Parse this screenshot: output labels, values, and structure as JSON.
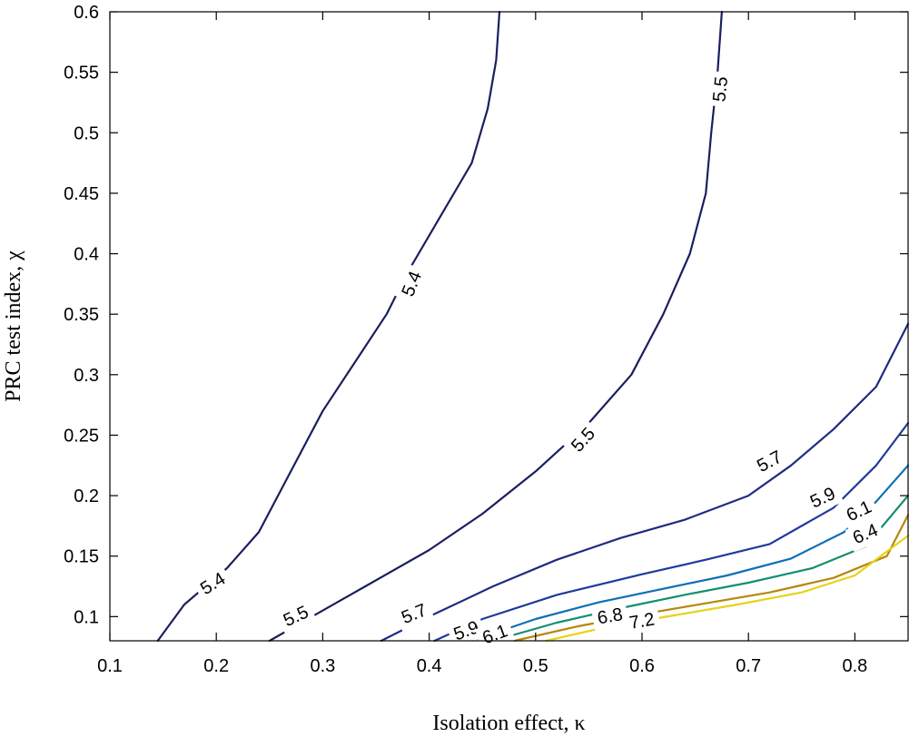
{
  "chart_data": {
    "type": "contour",
    "title": "",
    "xlabel": "Isolation effect, κ",
    "ylabel": "PRC test index, χ",
    "xlim": [
      0.1,
      0.85
    ],
    "ylim": [
      0.08,
      0.6
    ],
    "xticks": [
      0.1,
      0.2,
      0.3,
      0.4,
      0.5,
      0.6,
      0.7,
      0.8
    ],
    "xtick_labels": [
      "0.1",
      "0.2",
      "0.3",
      "0.4",
      "0.5",
      "0.6",
      "0.7",
      "0.8"
    ],
    "yticks": [
      0.1,
      0.15,
      0.2,
      0.25,
      0.3,
      0.35,
      0.4,
      0.45,
      0.5,
      0.55,
      0.6
    ],
    "ytick_labels": [
      "0.1",
      "0.15",
      "0.2",
      "0.25",
      "0.3",
      "0.35",
      "0.4",
      "0.45",
      "0.5",
      "0.55",
      "0.6"
    ],
    "grid": false,
    "series": [
      {
        "name": "5.4",
        "color": "#1b1f5e",
        "points": [
          [
            0.145,
            0.08
          ],
          [
            0.17,
            0.11
          ],
          [
            0.21,
            0.14
          ],
          [
            0.24,
            0.17
          ],
          [
            0.27,
            0.22
          ],
          [
            0.3,
            0.27
          ],
          [
            0.33,
            0.31
          ],
          [
            0.36,
            0.35
          ],
          [
            0.38,
            0.385
          ],
          [
            0.41,
            0.43
          ],
          [
            0.44,
            0.475
          ],
          [
            0.455,
            0.52
          ],
          [
            0.463,
            0.56
          ],
          [
            0.466,
            0.6
          ]
        ],
        "labels": [
          {
            "text": "5.4",
            "x": 0.197,
            "y": 0.127,
            "rot": -32
          },
          {
            "text": "5.4",
            "x": 0.384,
            "y": 0.375,
            "rot": -68
          }
        ]
      },
      {
        "name": "5.5",
        "color": "#1b1f5e",
        "points": [
          [
            0.25,
            0.08
          ],
          [
            0.29,
            0.1
          ],
          [
            0.34,
            0.125
          ],
          [
            0.4,
            0.155
          ],
          [
            0.45,
            0.185
          ],
          [
            0.5,
            0.22
          ],
          [
            0.55,
            0.26
          ],
          [
            0.59,
            0.3
          ],
          [
            0.62,
            0.35
          ],
          [
            0.645,
            0.4
          ],
          [
            0.66,
            0.45
          ],
          [
            0.665,
            0.5
          ],
          [
            0.671,
            0.55
          ],
          [
            0.675,
            0.6
          ]
        ],
        "labels": [
          {
            "text": "5.5",
            "x": 0.275,
            "y": 0.1,
            "rot": -25
          },
          {
            "text": "5.5",
            "x": 0.545,
            "y": 0.246,
            "rot": -48
          },
          {
            "text": "5.5",
            "x": 0.674,
            "y": 0.536,
            "rot": -84
          }
        ]
      },
      {
        "name": "5.7",
        "color": "#1e2b80",
        "points": [
          [
            0.355,
            0.08
          ],
          [
            0.4,
            0.1
          ],
          [
            0.46,
            0.125
          ],
          [
            0.52,
            0.147
          ],
          [
            0.58,
            0.165
          ],
          [
            0.64,
            0.18
          ],
          [
            0.7,
            0.2
          ],
          [
            0.74,
            0.225
          ],
          [
            0.78,
            0.255
          ],
          [
            0.82,
            0.29
          ],
          [
            0.85,
            0.342
          ]
        ],
        "labels": [
          {
            "text": "5.7",
            "x": 0.386,
            "y": 0.102,
            "rot": -22
          },
          {
            "text": "5.7",
            "x": 0.72,
            "y": 0.228,
            "rot": -28
          }
        ]
      },
      {
        "name": "5.9",
        "color": "#1f3a9c",
        "points": [
          [
            0.405,
            0.08
          ],
          [
            0.45,
            0.098
          ],
          [
            0.52,
            0.118
          ],
          [
            0.6,
            0.135
          ],
          [
            0.66,
            0.147
          ],
          [
            0.72,
            0.16
          ],
          [
            0.78,
            0.19
          ],
          [
            0.82,
            0.225
          ],
          [
            0.85,
            0.26
          ]
        ],
        "labels": [
          {
            "text": "5.9",
            "x": 0.435,
            "y": 0.088,
            "rot": -20
          },
          {
            "text": "5.9",
            "x": 0.77,
            "y": 0.198,
            "rot": -25
          }
        ]
      },
      {
        "name": "6.1",
        "color": "#0f6eb4",
        "points": [
          [
            0.44,
            0.08
          ],
          [
            0.5,
            0.098
          ],
          [
            0.56,
            0.112
          ],
          [
            0.62,
            0.123
          ],
          [
            0.68,
            0.134
          ],
          [
            0.74,
            0.148
          ],
          [
            0.79,
            0.17
          ],
          [
            0.82,
            0.195
          ],
          [
            0.85,
            0.225
          ]
        ],
        "labels": [
          {
            "text": "6.1",
            "x": 0.462,
            "y": 0.085,
            "rot": -20
          },
          {
            "text": "6.1",
            "x": 0.804,
            "y": 0.187,
            "rot": -25
          }
        ]
      },
      {
        "name": "6.4",
        "color": "#128f6e",
        "points": [
          [
            0.46,
            0.08
          ],
          [
            0.52,
            0.095
          ],
          [
            0.58,
            0.107
          ],
          [
            0.64,
            0.118
          ],
          [
            0.7,
            0.128
          ],
          [
            0.76,
            0.14
          ],
          [
            0.81,
            0.158
          ],
          [
            0.85,
            0.2
          ]
        ],
        "labels": [
          {
            "text": "6.4",
            "x": 0.81,
            "y": 0.168,
            "rot": -23
          }
        ]
      },
      {
        "name": "6.8",
        "color": "#b8860b",
        "points": [
          [
            0.48,
            0.08
          ],
          [
            0.54,
            0.092
          ],
          [
            0.6,
            0.102
          ],
          [
            0.66,
            0.111
          ],
          [
            0.72,
            0.12
          ],
          [
            0.78,
            0.132
          ],
          [
            0.83,
            0.15
          ],
          [
            0.85,
            0.184
          ]
        ],
        "labels": [
          {
            "text": "6.8",
            "x": 0.57,
            "y": 0.1,
            "rot": -10
          }
        ]
      },
      {
        "name": "7.2",
        "color": "#e6d21a",
        "points": [
          [
            0.51,
            0.08
          ],
          [
            0.57,
            0.092
          ],
          [
            0.63,
            0.101
          ],
          [
            0.69,
            0.11
          ],
          [
            0.75,
            0.12
          ],
          [
            0.8,
            0.134
          ],
          [
            0.85,
            0.167
          ]
        ],
        "labels": [
          {
            "text": "7.2",
            "x": 0.6,
            "y": 0.096,
            "rot": -10
          }
        ]
      }
    ]
  }
}
